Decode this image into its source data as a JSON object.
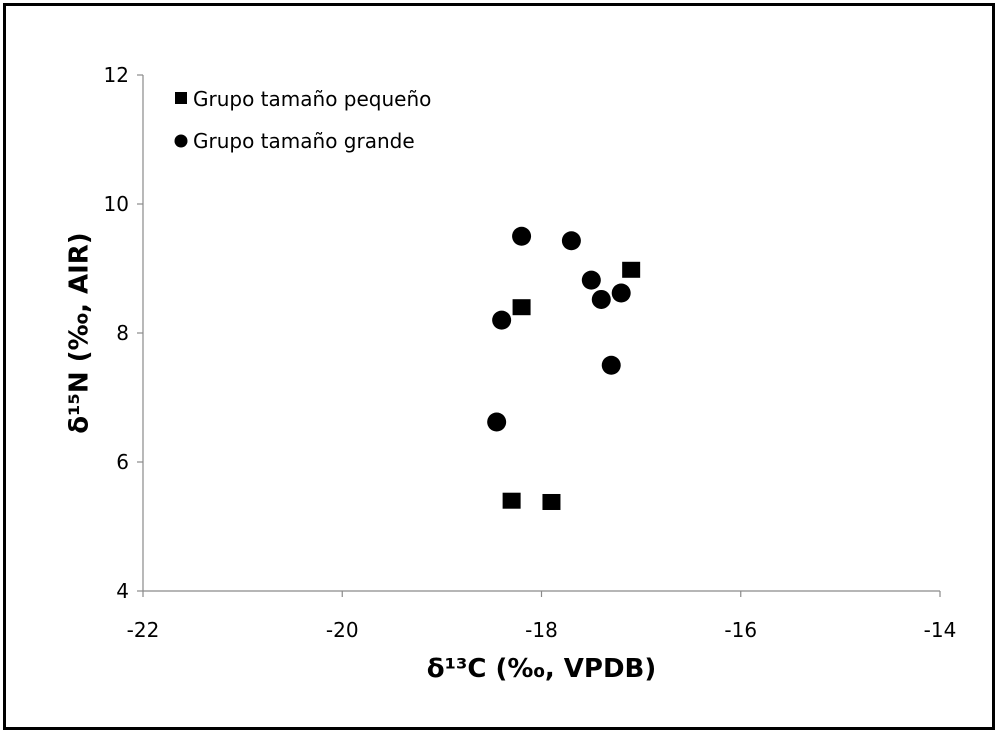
{
  "chart_data": {
    "type": "scatter",
    "title": "",
    "xlabel": "δ¹³C (‰, VPDB)",
    "ylabel": "δ¹⁵N (‰, AIR)",
    "xlim": [
      -22,
      -14
    ],
    "ylim": [
      4,
      12
    ],
    "x_ticks": [
      -22,
      -20,
      -18,
      -16,
      -14
    ],
    "y_ticks": [
      4,
      6,
      8,
      10,
      12
    ],
    "x_tick_labels": [
      "-22",
      "-20",
      "-18",
      "-16",
      "-14"
    ],
    "y_tick_labels": [
      "4",
      "6",
      "8",
      "10",
      "12"
    ],
    "grid": false,
    "legend_position": "top-left",
    "series": [
      {
        "name": "Grupo tamaño pequeño",
        "marker": "square",
        "color": "#000000",
        "points": [
          {
            "x": -18.2,
            "y": 8.4
          },
          {
            "x": -17.1,
            "y": 8.98
          },
          {
            "x": -18.3,
            "y": 5.4
          },
          {
            "x": -17.9,
            "y": 5.38
          }
        ]
      },
      {
        "name": "Grupo tamaño grande",
        "marker": "circle",
        "color": "#000000",
        "points": [
          {
            "x": -18.2,
            "y": 9.5
          },
          {
            "x": -17.7,
            "y": 9.43
          },
          {
            "x": -17.5,
            "y": 8.82
          },
          {
            "x": -17.4,
            "y": 8.52
          },
          {
            "x": -17.2,
            "y": 8.62
          },
          {
            "x": -18.4,
            "y": 8.2
          },
          {
            "x": -17.3,
            "y": 7.5
          },
          {
            "x": -18.45,
            "y": 6.62
          }
        ]
      }
    ]
  }
}
